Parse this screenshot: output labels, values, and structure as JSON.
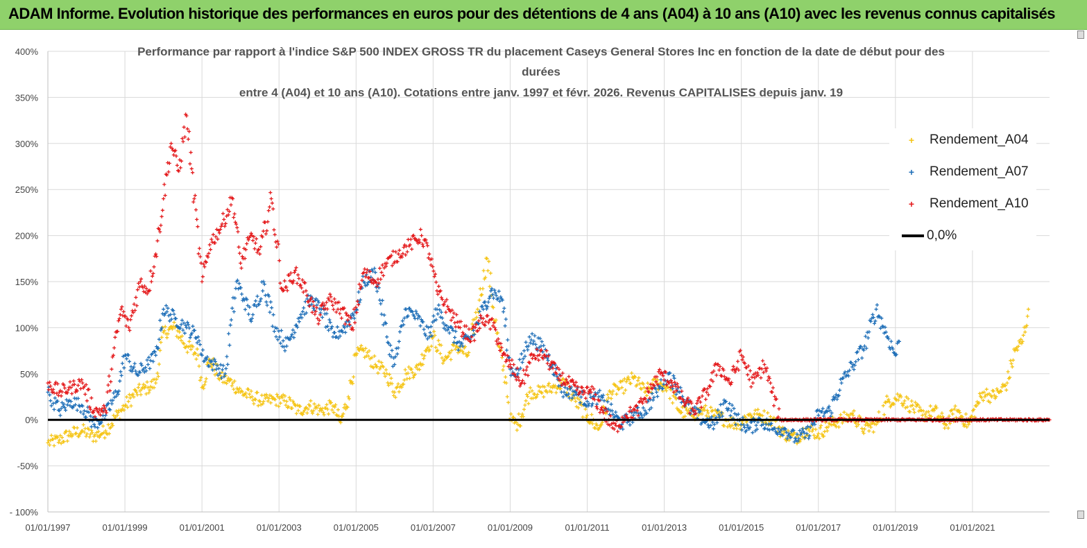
{
  "banner": {
    "title": "ADAM Informe. Evolution historique des performances en euros pour des détentions de 4 ans (A04) à 10 ans (A10) avec les revenus connus capitalisés"
  },
  "colors": {
    "A04": "#f5c518",
    "A07": "#1f6fb8",
    "A10": "#e41a1c",
    "zero": "#000000",
    "grid": "#d9d9d9",
    "banner": "#8fd16b"
  },
  "chart_data": {
    "type": "scatter",
    "title_lines": [
      "Performance par rapport à l'indice S&P 500 INDEX GROSS TR  du placement Caseys General Stores Inc en fonction de la date de début pour des",
      "durées",
      "entre 4 (A04) et 10 ans (A10).  Cotations entre janv. 1997 et févr. 2026. Revenus CAPITALISES depuis janv. 19"
    ],
    "ylim": [
      -100,
      400
    ],
    "yticks": [
      -100,
      -50,
      0,
      50,
      100,
      150,
      200,
      250,
      300,
      350,
      400
    ],
    "ytick_labels": [
      "- 100%",
      "-50%",
      "0%",
      "50%",
      "100%",
      "150%",
      "200%",
      "250%",
      "300%",
      "350%",
      "400%"
    ],
    "xlim": [
      1997.0,
      2023.0
    ],
    "xticks": [
      1997,
      1999,
      2001,
      2003,
      2005,
      2007,
      2009,
      2011,
      2013,
      2015,
      2017,
      2019,
      2021
    ],
    "xtick_labels": [
      "01/01/1997",
      "01/01/1999",
      "01/01/2001",
      "01/01/2003",
      "01/01/2005",
      "01/01/2007",
      "01/01/2009",
      "01/01/2011",
      "01/01/2013",
      "01/01/2015",
      "01/01/2017",
      "01/01/2019",
      "01/01/2021"
    ],
    "legend": [
      "Rendement_A04",
      "Rendement_A07",
      "Rendement_A10",
      "0,0%"
    ],
    "series": [
      {
        "name": "Rendement_A04",
        "color_key": "A04",
        "x": [
          1997.0,
          1997.3,
          1997.6,
          1997.9,
          1998.2,
          1998.5,
          1998.8,
          1999.0,
          1999.3,
          1999.6,
          1999.8,
          2000.0,
          2000.3,
          2000.6,
          2000.9,
          2001.0,
          2001.2,
          2001.5,
          2001.8,
          2002.0,
          2002.3,
          2002.6,
          2002.9,
          2003.2,
          2003.5,
          2003.8,
          2004.1,
          2004.4,
          2004.6,
          2004.8,
          2005.0,
          2005.2,
          2005.5,
          2005.8,
          2006.0,
          2006.3,
          2006.6,
          2006.8,
          2007.0,
          2007.3,
          2007.6,
          2007.9,
          2008.2,
          2008.4,
          2008.7,
          2008.9,
          2009.0,
          2009.2,
          2009.5,
          2009.8,
          2010.1,
          2010.4,
          2010.7,
          2011.0,
          2011.3,
          2011.6,
          2011.9,
          2012.2,
          2012.5,
          2012.8,
          2013.1,
          2013.4,
          2013.7,
          2014.0,
          2014.3,
          2014.6,
          2014.9,
          2015.2,
          2015.5,
          2015.8,
          2016.1,
          2016.4,
          2016.7,
          2017.0,
          2017.3,
          2017.6,
          2017.9,
          2018.2,
          2018.5,
          2018.8,
          2019.1,
          2019.4,
          2019.7,
          2020.0,
          2020.3,
          2020.6,
          2020.9,
          2021.1,
          2021.3,
          2021.5,
          2021.7,
          2021.9,
          2022.1,
          2022.3,
          2022.45
        ],
        "y": [
          -25,
          -22,
          -15,
          -12,
          -18,
          -12,
          5,
          15,
          30,
          35,
          40,
          95,
          100,
          80,
          70,
          35,
          65,
          45,
          40,
          30,
          25,
          20,
          22,
          20,
          10,
          15,
          10,
          15,
          -3,
          25,
          70,
          75,
          60,
          50,
          30,
          50,
          55,
          75,
          90,
          65,
          80,
          70,
          130,
          175,
          80,
          40,
          0,
          -5,
          30,
          30,
          35,
          40,
          20,
          5,
          -10,
          30,
          35,
          45,
          30,
          40,
          35,
          10,
          5,
          10,
          5,
          0,
          -5,
          5,
          5,
          0,
          -15,
          -20,
          -10,
          -15,
          -5,
          0,
          5,
          -10,
          -5,
          20,
          25,
          15,
          5,
          10,
          -5,
          10,
          -5,
          15,
          30,
          25,
          30,
          40,
          75,
          85,
          120
        ]
      },
      {
        "name": "Rendement_A07",
        "color_key": "A07",
        "x": [
          1997.0,
          1997.3,
          1997.6,
          1997.9,
          1998.2,
          1998.5,
          1998.8,
          1999.0,
          1999.3,
          1999.6,
          1999.8,
          2000.0,
          2000.3,
          2000.6,
          2000.9,
          2001.0,
          2001.3,
          2001.6,
          2001.9,
          2002.1,
          2002.3,
          2002.6,
          2002.9,
          2003.2,
          2003.5,
          2003.8,
          2004.1,
          2004.4,
          2004.7,
          2005.0,
          2005.2,
          2005.5,
          2005.8,
          2006.0,
          2006.3,
          2006.6,
          2006.9,
          2007.1,
          2007.4,
          2007.7,
          2008.0,
          2008.3,
          2008.5,
          2008.8,
          2009.0,
          2009.2,
          2009.5,
          2009.8,
          2010.1,
          2010.4,
          2010.7,
          2011.0,
          2011.3,
          2011.6,
          2011.9,
          2012.2,
          2012.5,
          2012.8,
          2013.1,
          2013.4,
          2013.7,
          2014.0,
          2014.3,
          2014.6,
          2014.9,
          2015.2,
          2015.5,
          2015.8,
          2016.1,
          2016.4,
          2016.7,
          2017.0,
          2017.3,
          2017.6,
          2017.9,
          2018.2,
          2018.5,
          2018.8,
          2019.0,
          2019.1
        ],
        "y": [
          30,
          10,
          20,
          15,
          -5,
          5,
          30,
          70,
          50,
          60,
          70,
          120,
          110,
          100,
          90,
          70,
          60,
          50,
          150,
          130,
          110,
          150,
          100,
          80,
          110,
          130,
          120,
          90,
          100,
          120,
          150,
          160,
          90,
          60,
          120,
          110,
          90,
          120,
          100,
          80,
          90,
          120,
          140,
          130,
          55,
          50,
          90,
          80,
          60,
          30,
          30,
          20,
          25,
          10,
          -5,
          5,
          10,
          30,
          50,
          30,
          10,
          0,
          -5,
          20,
          0,
          -10,
          0,
          -10,
          -10,
          -20,
          -15,
          5,
          10,
          40,
          60,
          80,
          120,
          90,
          70,
          85
        ]
      },
      {
        "name": "Rendement_A10",
        "color_key": "A10",
        "x": [
          1997.0,
          1997.3,
          1997.6,
          1997.9,
          1998.2,
          1998.5,
          1998.7,
          1998.9,
          1999.1,
          1999.4,
          1999.6,
          1999.8,
          2000.0,
          2000.2,
          2000.4,
          2000.6,
          2000.8,
          2001.0,
          2001.2,
          2001.5,
          2001.8,
          2002.0,
          2002.3,
          2002.5,
          2002.8,
          2003.1,
          2003.4,
          2003.7,
          2004.0,
          2004.3,
          2004.6,
          2004.9,
          2005.2,
          2005.5,
          2005.8,
          2006.1,
          2006.4,
          2006.7,
          2006.9,
          2007.1,
          2007.4,
          2007.7,
          2008.0,
          2008.3,
          2008.6,
          2008.8,
          2009.0,
          2009.3,
          2009.6,
          2009.9,
          2010.2,
          2010.5,
          2010.8,
          2011.1,
          2011.4,
          2011.7,
          2012.0,
          2012.3,
          2012.6,
          2012.9,
          2013.2,
          2013.5,
          2013.8,
          2014.1,
          2014.4,
          2014.7,
          2015.0,
          2015.3,
          2015.6,
          2015.8,
          2016.0,
          2016.5,
          2017.0,
          2017.5,
          2018.0,
          2018.5,
          2019.0,
          2019.5,
          2020.0,
          2020.5,
          2021.0,
          2021.5,
          2022.0,
          2022.5,
          2023.0
        ],
        "y": [
          40,
          30,
          35,
          40,
          10,
          10,
          70,
          120,
          100,
          150,
          140,
          180,
          240,
          300,
          270,
          330,
          240,
          150,
          190,
          210,
          240,
          170,
          200,
          180,
          240,
          140,
          160,
          140,
          110,
          130,
          120,
          100,
          160,
          150,
          170,
          180,
          190,
          200,
          180,
          140,
          120,
          100,
          90,
          110,
          100,
          70,
          60,
          40,
          70,
          70,
          50,
          40,
          30,
          30,
          10,
          -10,
          5,
          10,
          30,
          50,
          40,
          20,
          10,
          30,
          60,
          40,
          70,
          40,
          60,
          30,
          0,
          0,
          0,
          0,
          0,
          0,
          0,
          0,
          0,
          0,
          0,
          0,
          0,
          0,
          0
        ]
      }
    ],
    "zero_line_value": 0
  }
}
